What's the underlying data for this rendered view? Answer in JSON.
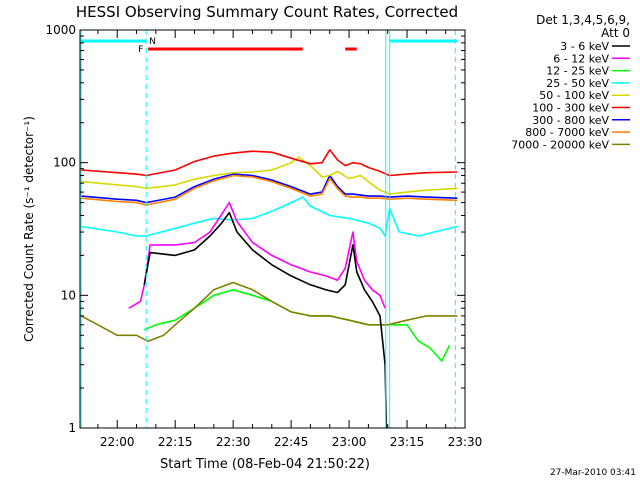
{
  "chart_data": {
    "type": "line",
    "title": "HESSI Observing Summary Count Rates, Corrected",
    "xlabel": "Start Time (08-Feb-04 21:50:22)",
    "ylabel": "Corrected Count Rate (s⁻¹ detector⁻¹)",
    "yscale": "log",
    "ylim": [
      1,
      1000
    ],
    "xlim": [
      "21:50:22",
      "23:30:00"
    ],
    "x_ticks": [
      "22:00",
      "22:15",
      "22:30",
      "22:45",
      "23:00",
      "23:15",
      "23:30"
    ],
    "y_ticks": [
      "1",
      "10",
      "100",
      "1000"
    ],
    "legend_title": [
      "Det 1,3,4,5,6,9,",
      "Att 0"
    ],
    "legend_position": "right",
    "timestamp": "27-Mar-2010 03:41",
    "flags": {
      "N_label": "N",
      "F_label": "F",
      "N_color": "#00ffff",
      "F_color": "#ff0000",
      "N_intervals": [
        [
          "21:50:22",
          "22:07:30"
        ],
        [
          "23:10:30",
          "23:28:00"
        ]
      ],
      "F_intervals": [
        [
          "22:08:00",
          "22:48:00"
        ],
        [
          "22:59:00",
          "23:02:00"
        ]
      ]
    },
    "vlines": [
      {
        "x": "21:50:40",
        "style": "solid",
        "color": "#00ffff"
      },
      {
        "x": "22:07:30",
        "style": "dashed",
        "color": "#00ffff"
      },
      {
        "x": "23:09:30",
        "style": "solid",
        "color": "#00ffff"
      },
      {
        "x": "23:10:30",
        "style": "solid",
        "color": "#00ffff"
      },
      {
        "x": "23:27:30",
        "style": "dashed",
        "color": "#00ffff"
      }
    ],
    "series": [
      {
        "name": "3 - 6 keV",
        "color": "#000000",
        "points": [
          [
            "22:07:00",
            12
          ],
          [
            "22:08:30",
            21
          ],
          [
            "22:15",
            20
          ],
          [
            "22:20",
            22
          ],
          [
            "22:24",
            28
          ],
          [
            "22:27",
            35
          ],
          [
            "22:29",
            42
          ],
          [
            "22:31",
            30
          ],
          [
            "22:35",
            22
          ],
          [
            "22:40",
            17
          ],
          [
            "22:45",
            14
          ],
          [
            "22:50",
            12
          ],
          [
            "22:54",
            11
          ],
          [
            "22:57",
            10.5
          ],
          [
            "22:59",
            12
          ],
          [
            "23:01",
            24
          ],
          [
            "23:02",
            15
          ],
          [
            "23:04",
            11
          ],
          [
            "23:06",
            9
          ],
          [
            "23:08",
            7
          ],
          [
            "23:09:20",
            3
          ],
          [
            "23:09:40",
            1
          ]
        ]
      },
      {
        "name": "6 - 12 keV",
        "color": "#ff00ff",
        "points": [
          [
            "22:03",
            8
          ],
          [
            "22:06",
            9
          ],
          [
            "22:07:00",
            12
          ],
          [
            "22:08:30",
            24
          ],
          [
            "22:15",
            24
          ],
          [
            "22:20",
            25
          ],
          [
            "22:24",
            30
          ],
          [
            "22:28",
            45
          ],
          [
            "22:29",
            50
          ],
          [
            "22:31",
            36
          ],
          [
            "22:35",
            25
          ],
          [
            "22:40",
            20
          ],
          [
            "22:45",
            17
          ],
          [
            "22:50",
            15
          ],
          [
            "22:54",
            14
          ],
          [
            "22:57",
            13
          ],
          [
            "22:59",
            16
          ],
          [
            "23:01",
            30
          ],
          [
            "23:02",
            18
          ],
          [
            "23:04",
            13
          ],
          [
            "23:06",
            11
          ],
          [
            "23:08",
            10
          ],
          [
            "23:09:20",
            8
          ]
        ]
      },
      {
        "name": "12 - 25 keV",
        "color": "#00ff00",
        "points": [
          [
            "22:07:00",
            5.5
          ],
          [
            "22:10",
            6
          ],
          [
            "22:15",
            6.5
          ],
          [
            "22:20",
            8
          ],
          [
            "22:25",
            10
          ],
          [
            "22:30",
            11
          ],
          [
            "22:35",
            10
          ],
          [
            "22:40",
            9
          ],
          [
            "22:45",
            7.5
          ],
          [
            "22:50",
            7
          ],
          [
            "22:55",
            7
          ],
          [
            "23:00",
            6.5
          ],
          [
            "23:05",
            6
          ],
          [
            "23:09:20",
            6
          ],
          [
            "23:10:30",
            6
          ],
          [
            "23:15",
            6
          ],
          [
            "23:18",
            4.5
          ],
          [
            "23:21",
            4
          ],
          [
            "23:24",
            3.2
          ],
          [
            "23:26",
            4.2
          ]
        ]
      },
      {
        "name": "25 - 50 keV",
        "color": "#00ffff",
        "points": [
          [
            "21:50:40",
            33
          ],
          [
            "22:00",
            30
          ],
          [
            "22:05",
            28
          ],
          [
            "22:07:30",
            28
          ],
          [
            "22:15",
            32
          ],
          [
            "22:20",
            35
          ],
          [
            "22:25",
            38
          ],
          [
            "22:30",
            37
          ],
          [
            "22:35",
            38
          ],
          [
            "22:40",
            43
          ],
          [
            "22:45",
            50
          ],
          [
            "22:48",
            55
          ],
          [
            "22:50",
            47
          ],
          [
            "22:55",
            40
          ],
          [
            "23:00",
            38
          ],
          [
            "23:05",
            35
          ],
          [
            "23:08",
            32
          ],
          [
            "23:09:20",
            28
          ],
          [
            "23:10:30",
            45
          ],
          [
            "23:13",
            30
          ],
          [
            "23:18",
            28
          ],
          [
            "23:22",
            30
          ],
          [
            "23:28",
            33
          ]
        ]
      },
      {
        "name": "50 - 100 keV",
        "color": "#d8d800",
        "points": [
          [
            "21:50:40",
            72
          ],
          [
            "22:00",
            68
          ],
          [
            "22:05",
            66
          ],
          [
            "22:07:30",
            64
          ],
          [
            "22:15",
            68
          ],
          [
            "22:20",
            75
          ],
          [
            "22:25",
            80
          ],
          [
            "22:30",
            84
          ],
          [
            "22:35",
            85
          ],
          [
            "22:40",
            88
          ],
          [
            "22:45",
            100
          ],
          [
            "22:47",
            110
          ],
          [
            "22:50",
            95
          ],
          [
            "22:53",
            78
          ],
          [
            "22:55",
            80
          ],
          [
            "22:57",
            86
          ],
          [
            "23:00",
            76
          ],
          [
            "23:03",
            80
          ],
          [
            "23:05",
            72
          ],
          [
            "23:08",
            62
          ],
          [
            "23:09:20",
            60
          ],
          [
            "23:10:30",
            58
          ],
          [
            "23:15",
            60
          ],
          [
            "23:20",
            62
          ],
          [
            "23:28",
            64
          ]
        ]
      },
      {
        "name": "100 - 300 keV",
        "color": "#ff0000",
        "points": [
          [
            "21:50:40",
            88
          ],
          [
            "22:00",
            84
          ],
          [
            "22:05",
            82
          ],
          [
            "22:07:30",
            80
          ],
          [
            "22:15",
            88
          ],
          [
            "22:20",
            102
          ],
          [
            "22:25",
            112
          ],
          [
            "22:30",
            118
          ],
          [
            "22:35",
            122
          ],
          [
            "22:40",
            120
          ],
          [
            "22:45",
            108
          ],
          [
            "22:50",
            98
          ],
          [
            "22:53",
            100
          ],
          [
            "22:55",
            125
          ],
          [
            "22:57",
            105
          ],
          [
            "22:59",
            95
          ],
          [
            "23:01",
            100
          ],
          [
            "23:03",
            98
          ],
          [
            "23:05",
            92
          ],
          [
            "23:08",
            86
          ],
          [
            "23:10:30",
            80
          ],
          [
            "23:15",
            82
          ],
          [
            "23:20",
            84
          ],
          [
            "23:28",
            85
          ]
        ]
      },
      {
        "name": "300 - 800 keV",
        "color": "#0000ff",
        "points": [
          [
            "21:50:40",
            56
          ],
          [
            "22:00",
            53
          ],
          [
            "22:05",
            52
          ],
          [
            "22:07:30",
            50
          ],
          [
            "22:15",
            55
          ],
          [
            "22:20",
            66
          ],
          [
            "22:25",
            75
          ],
          [
            "22:30",
            82
          ],
          [
            "22:35",
            80
          ],
          [
            "22:40",
            74
          ],
          [
            "22:45",
            66
          ],
          [
            "22:50",
            58
          ],
          [
            "22:53",
            60
          ],
          [
            "22:55",
            80
          ],
          [
            "22:57",
            66
          ],
          [
            "22:59",
            58
          ],
          [
            "23:01",
            58
          ],
          [
            "23:03",
            57
          ],
          [
            "23:05",
            56
          ],
          [
            "23:08",
            56
          ],
          [
            "23:10:30",
            55
          ],
          [
            "23:15",
            56
          ],
          [
            "23:20",
            55
          ],
          [
            "23:28",
            54
          ]
        ]
      },
      {
        "name": "800 - 7000 keV",
        "color": "#ff8000",
        "points": [
          [
            "21:50:40",
            54
          ],
          [
            "22:00",
            51
          ],
          [
            "22:05",
            50
          ],
          [
            "22:07:30",
            48
          ],
          [
            "22:15",
            53
          ],
          [
            "22:20",
            64
          ],
          [
            "22:25",
            73
          ],
          [
            "22:30",
            80
          ],
          [
            "22:35",
            78
          ],
          [
            "22:40",
            72
          ],
          [
            "22:45",
            64
          ],
          [
            "22:50",
            56
          ],
          [
            "22:53",
            58
          ],
          [
            "22:55",
            76
          ],
          [
            "22:57",
            64
          ],
          [
            "22:59",
            56
          ],
          [
            "23:01",
            55
          ],
          [
            "23:03",
            55
          ],
          [
            "23:05",
            54
          ],
          [
            "23:08",
            54
          ],
          [
            "23:10:30",
            53
          ],
          [
            "23:15",
            54
          ],
          [
            "23:20",
            53
          ],
          [
            "23:28",
            52
          ]
        ]
      },
      {
        "name": "7000 - 20000 keV",
        "color": "#808000",
        "points": [
          [
            "21:50:40",
            7
          ],
          [
            "21:55",
            6
          ],
          [
            "22:00",
            5
          ],
          [
            "22:05",
            5
          ],
          [
            "22:08",
            4.5
          ],
          [
            "22:12",
            5
          ],
          [
            "22:15",
            6
          ],
          [
            "22:20",
            8
          ],
          [
            "22:25",
            11
          ],
          [
            "22:30",
            12.5
          ],
          [
            "22:35",
            11
          ],
          [
            "22:40",
            9
          ],
          [
            "22:45",
            7.5
          ],
          [
            "22:50",
            7
          ],
          [
            "22:55",
            7
          ],
          [
            "23:00",
            6.5
          ],
          [
            "23:05",
            6
          ],
          [
            "23:10",
            6
          ],
          [
            "23:15",
            6.5
          ],
          [
            "23:20",
            7
          ],
          [
            "23:28",
            7
          ]
        ]
      }
    ]
  }
}
